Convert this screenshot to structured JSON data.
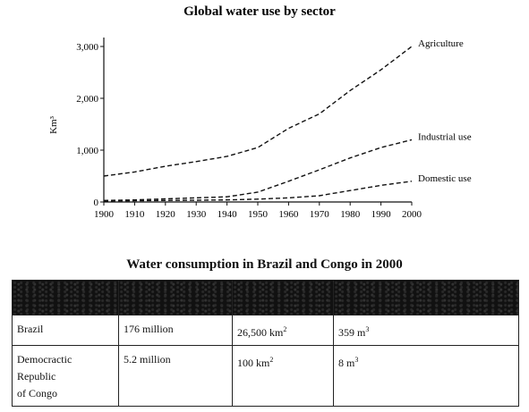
{
  "chart_data": {
    "type": "line",
    "title": "Global water use by sector",
    "xlabel": "",
    "ylabel": "Km³",
    "xlim": [
      1900,
      2000
    ],
    "ylim": [
      0,
      3000
    ],
    "x_ticks": [
      "1900",
      "1910",
      "1920",
      "1930",
      "1940",
      "1950",
      "1960",
      "1970",
      "1980",
      "1990",
      "2000"
    ],
    "y_ticks": [
      "0",
      "1,000",
      "2,000",
      "3,000"
    ],
    "x": [
      1900,
      1910,
      1920,
      1930,
      1940,
      1950,
      1960,
      1970,
      1980,
      1990,
      2000
    ],
    "series": [
      {
        "name": "Agriculture",
        "values": [
          500,
          580,
          690,
          780,
          880,
          1050,
          1420,
          1700,
          2150,
          2550,
          3000
        ]
      },
      {
        "name": "Industrial use",
        "values": [
          30,
          40,
          60,
          80,
          100,
          190,
          400,
          620,
          850,
          1050,
          1200
        ]
      },
      {
        "name": "Domestic use",
        "values": [
          20,
          25,
          30,
          35,
          40,
          55,
          80,
          120,
          220,
          320,
          400
        ]
      }
    ],
    "grid": false,
    "line_style": "dashed"
  },
  "table": {
    "title": "Water consumption in Brazil and Congo in 2000",
    "rows": [
      {
        "country": "Brazil",
        "population": "176 million",
        "area_value": "26,500 km",
        "area_unit_sup": "2",
        "consumption_value": "359 m",
        "consumption_unit_sup": "3"
      },
      {
        "country": "Democractic\nRepublic\nof Congo",
        "population": "5.2 million",
        "area_value": "100 km",
        "area_unit_sup": "2",
        "consumption_value": "8 m",
        "consumption_unit_sup": "3"
      }
    ]
  }
}
